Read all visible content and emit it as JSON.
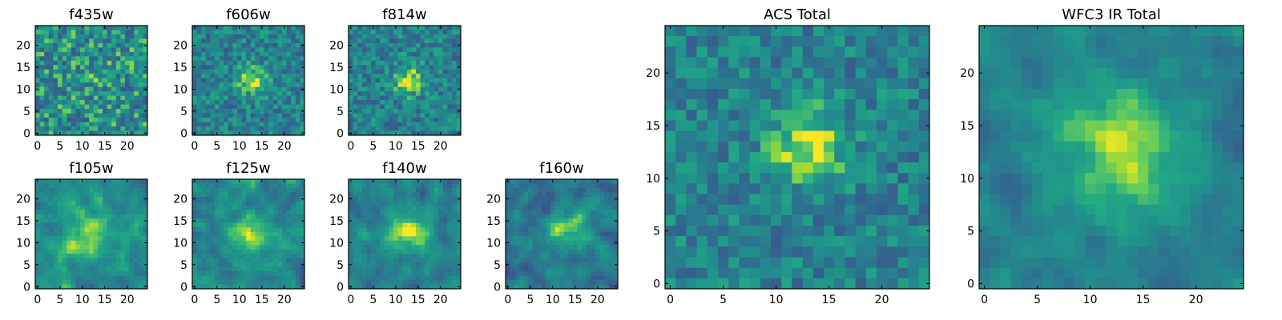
{
  "chart_data": [
    {
      "id": "f435w",
      "type": "heatmap",
      "title": "f435w",
      "grid_size": 25,
      "xlim": [
        0,
        24
      ],
      "ylim": [
        0,
        24
      ],
      "xticks": [
        0,
        5,
        10,
        15,
        20
      ],
      "yticks": [
        0,
        5,
        10,
        15,
        20
      ],
      "colormap": "viridis",
      "blob": {
        "center": [
          12,
          12
        ],
        "amplitude": 0.05,
        "width": 3
      },
      "noise": 0.55,
      "seed": 11,
      "base": 0.62
    },
    {
      "id": "f606w",
      "type": "heatmap",
      "title": "f606w",
      "grid_size": 25,
      "xlim": [
        0,
        24
      ],
      "ylim": [
        0,
        24
      ],
      "xticks": [
        0,
        5,
        10,
        15,
        20
      ],
      "yticks": [
        0,
        5,
        10,
        15,
        20
      ],
      "colormap": "viridis",
      "blob": {
        "center": [
          13,
          12
        ],
        "amplitude": 0.42,
        "width": 2.2
      },
      "noise": 0.4,
      "seed": 23,
      "base": 0.55
    },
    {
      "id": "f814w",
      "type": "heatmap",
      "title": "f814w",
      "grid_size": 25,
      "xlim": [
        0,
        24
      ],
      "ylim": [
        0,
        24
      ],
      "xticks": [
        0,
        5,
        10,
        15,
        20
      ],
      "yticks": [
        0,
        5,
        10,
        15,
        20
      ],
      "colormap": "viridis",
      "blob": {
        "center": [
          13,
          12
        ],
        "amplitude": 0.4,
        "width": 2.2
      },
      "noise": 0.4,
      "seed": 37,
      "base": 0.55
    },
    {
      "id": "f105w",
      "type": "heatmap",
      "title": "f105w",
      "grid_size": 25,
      "xlim": [
        0,
        24
      ],
      "ylim": [
        0,
        24
      ],
      "xticks": [
        0,
        5,
        10,
        15,
        20
      ],
      "yticks": [
        0,
        5,
        10,
        15,
        20
      ],
      "colormap": "viridis",
      "blob": {
        "center": [
          12,
          12
        ],
        "amplitude": 0.3,
        "width": 4
      },
      "noise": 0.38,
      "seed": 41,
      "base": 0.6
    },
    {
      "id": "f125w",
      "type": "heatmap",
      "title": "f125w",
      "grid_size": 25,
      "xlim": [
        0,
        24
      ],
      "ylim": [
        0,
        24
      ],
      "xticks": [
        0,
        5,
        10,
        15,
        20
      ],
      "yticks": [
        0,
        5,
        10,
        15,
        20
      ],
      "colormap": "viridis",
      "blob": {
        "center": [
          13,
          12
        ],
        "amplitude": 0.3,
        "width": 3.5
      },
      "noise": 0.4,
      "seed": 53,
      "base": 0.58
    },
    {
      "id": "f140w",
      "type": "heatmap",
      "title": "f140w",
      "grid_size": 25,
      "xlim": [
        0,
        24
      ],
      "ylim": [
        0,
        24
      ],
      "xticks": [
        0,
        5,
        10,
        15,
        20
      ],
      "yticks": [
        0,
        5,
        10,
        15,
        20
      ],
      "colormap": "viridis",
      "blob": {
        "center": [
          13,
          12
        ],
        "amplitude": 0.38,
        "width": 3.2
      },
      "noise": 0.38,
      "seed": 67,
      "base": 0.55
    },
    {
      "id": "f160w",
      "type": "heatmap",
      "title": "f160w",
      "grid_size": 25,
      "xlim": [
        0,
        24
      ],
      "ylim": [
        0,
        24
      ],
      "xticks": [
        0,
        5,
        10,
        15,
        20
      ],
      "yticks": [
        0,
        5,
        10,
        15,
        20
      ],
      "colormap": "viridis",
      "blob": {
        "center": [
          13,
          13
        ],
        "amplitude": 0.42,
        "width": 3
      },
      "noise": 0.4,
      "seed": 79,
      "base": 0.5
    },
    {
      "id": "acs_total",
      "type": "heatmap",
      "title": "ACS Total",
      "grid_size": 25,
      "xlim": [
        0,
        24
      ],
      "ylim": [
        0,
        24
      ],
      "xticks": [
        0,
        5,
        10,
        15,
        20
      ],
      "yticks": [
        0,
        5,
        10,
        15,
        20
      ],
      "colormap": "viridis",
      "blob": {
        "center": [
          13,
          13
        ],
        "amplitude": 0.42,
        "width": 2.5
      },
      "noise": 0.36,
      "seed": 97,
      "base": 0.55
    },
    {
      "id": "wfc3_total",
      "type": "heatmap",
      "title": "WFC3 IR Total",
      "grid_size": 25,
      "xlim": [
        0,
        24
      ],
      "ylim": [
        0,
        24
      ],
      "xticks": [
        0,
        5,
        10,
        15,
        20
      ],
      "yticks": [
        0,
        5,
        10,
        15,
        20
      ],
      "colormap": "viridis",
      "blob": {
        "center": [
          13,
          13
        ],
        "amplitude": 0.42,
        "width": 4
      },
      "noise": 0.28,
      "seed": 113,
      "base": 0.55
    }
  ]
}
